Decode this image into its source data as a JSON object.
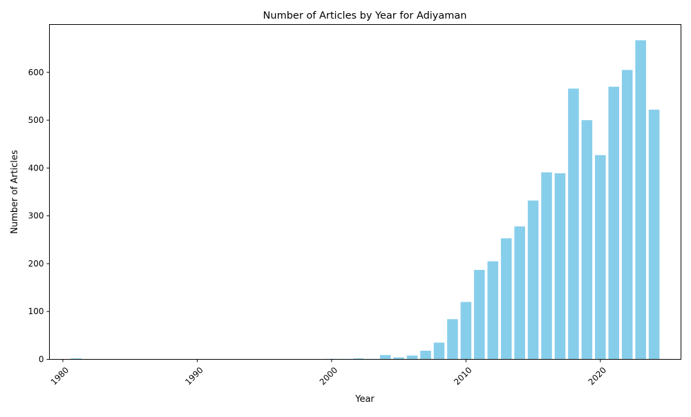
{
  "chart_data": {
    "type": "bar",
    "title": "Number of Articles by Year for Adiyaman",
    "xlabel": "Year",
    "ylabel": "Number of Articles",
    "bar_color": "#87ceeb",
    "xlim": [
      1979,
      2026
    ],
    "ylim": [
      0,
      700
    ],
    "xticks": [
      1980,
      1990,
      2000,
      2010,
      2020
    ],
    "yticks": [
      0,
      100,
      200,
      300,
      400,
      500,
      600
    ],
    "grid": false,
    "legend": "none",
    "x": [
      1981,
      2000,
      2001,
      2002,
      2003,
      2004,
      2005,
      2006,
      2007,
      2008,
      2009,
      2010,
      2011,
      2012,
      2013,
      2014,
      2015,
      2016,
      2017,
      2018,
      2019,
      2020,
      2021,
      2022,
      2023,
      2024
    ],
    "values": [
      2,
      1,
      1,
      2,
      1,
      9,
      4,
      8,
      18,
      35,
      84,
      120,
      187,
      205,
      253,
      278,
      332,
      391,
      389,
      566,
      500,
      427,
      570,
      605,
      667,
      522
    ]
  }
}
